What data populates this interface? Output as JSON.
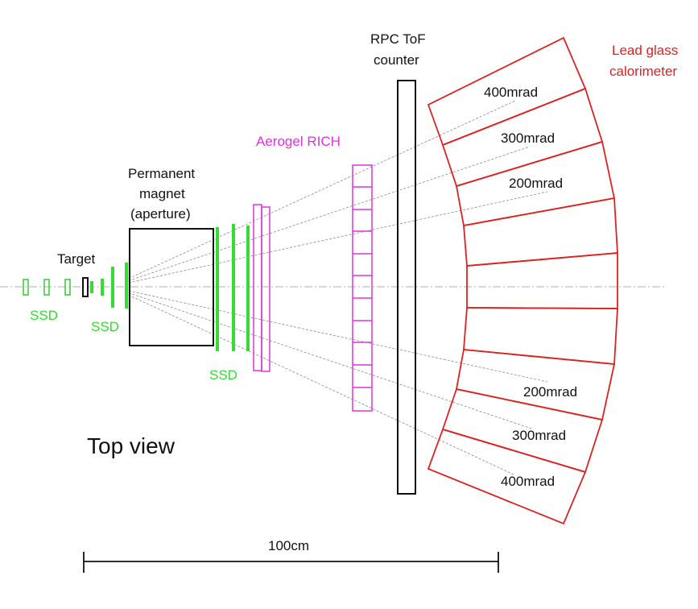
{
  "labels": {
    "target": "Target",
    "ssd_left": "SSD",
    "ssd_inner": "SSD",
    "ssd_right": "SSD",
    "magnet_line1": "Permanent",
    "magnet_line2": "magnet",
    "magnet_line3": "(aperture)",
    "rich": "Aerogel RICH",
    "tof_line1": "RPC ToF",
    "tof_line2": "counter",
    "calo_line1": "Lead glass",
    "calo_line2": "calorimeter",
    "angle_up_400": "400mrad",
    "angle_up_300": "300mrad",
    "angle_up_200": "200mrad",
    "angle_down_200": "200mrad",
    "angle_down_300": "300mrad",
    "angle_down_400": "400mrad",
    "view": "Top view",
    "scale": "100cm"
  },
  "colors": {
    "ssd": "#33dd33",
    "rich": "#dd33dd",
    "calorimeter": "#dd2222",
    "outline": "#111111",
    "beamline": "#aaaaaa"
  }
}
